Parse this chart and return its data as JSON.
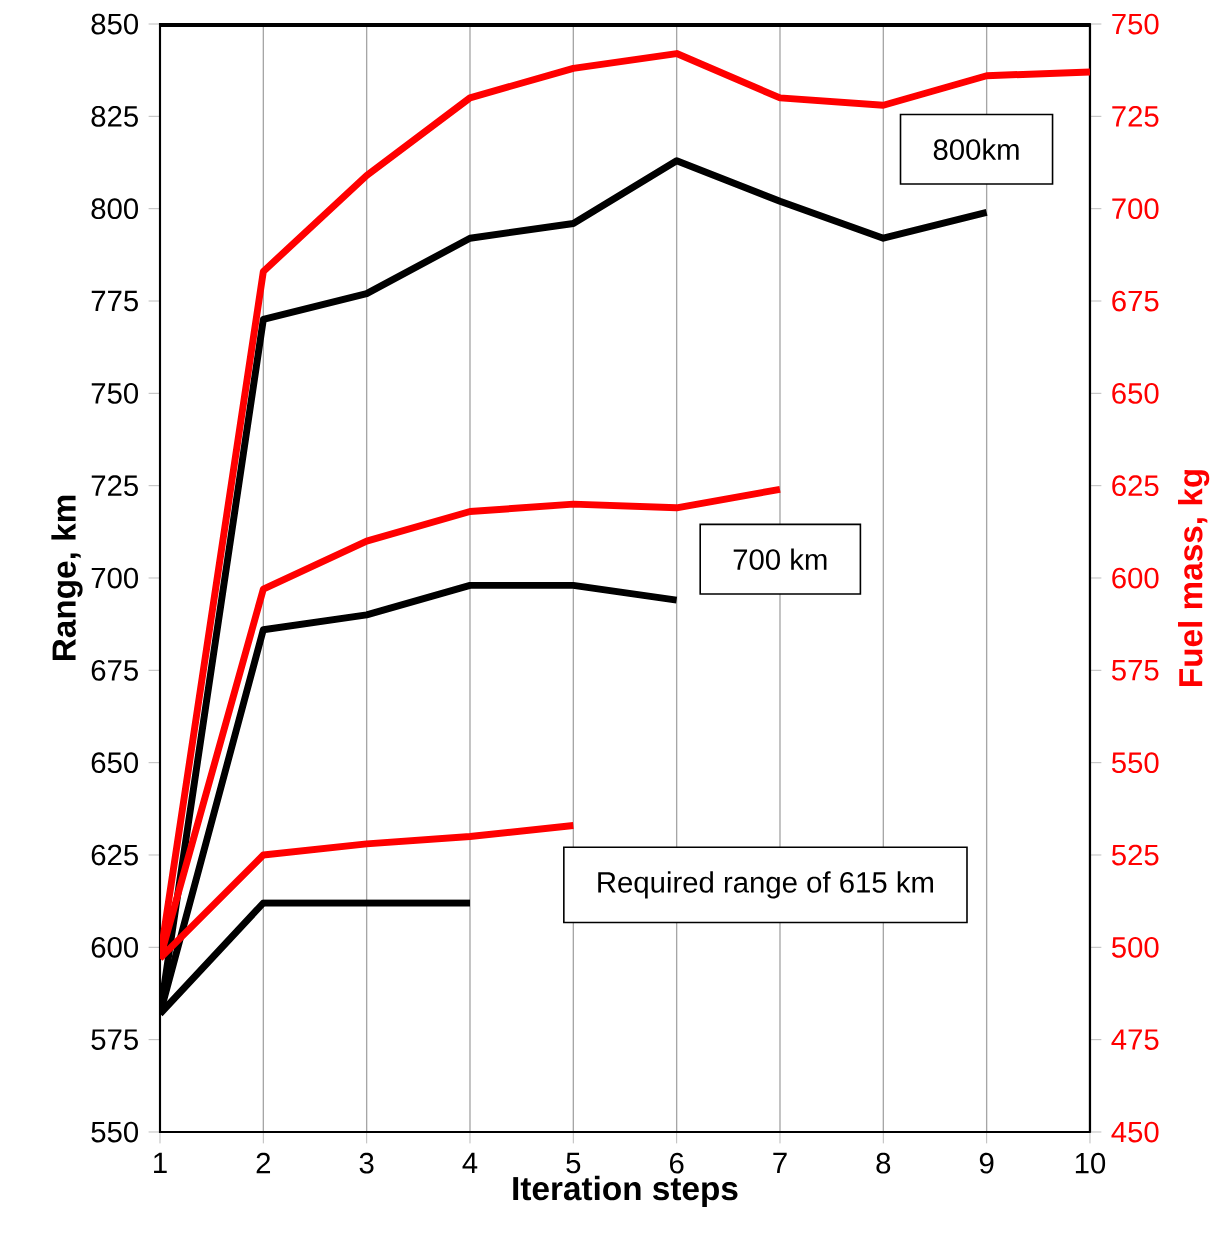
{
  "chart_data": {
    "type": "line",
    "xlabel": "Iteration steps",
    "ylabel": "Range, km",
    "y2label": "Fuel mass, kg",
    "xlim": [
      1,
      10
    ],
    "xticks": [
      1,
      2,
      3,
      4,
      5,
      6,
      7,
      8,
      9,
      10
    ],
    "ylim": [
      550,
      850
    ],
    "yticks": [
      550,
      575,
      600,
      625,
      650,
      675,
      700,
      725,
      750,
      775,
      800,
      825,
      850
    ],
    "y2lim": [
      450,
      750
    ],
    "y2ticks": [
      450,
      475,
      500,
      525,
      550,
      575,
      600,
      625,
      650,
      675,
      700,
      725,
      750
    ],
    "grid": "x",
    "marker": "none",
    "line_style": "solid",
    "series": [
      {
        "color": "#000000",
        "x": [
          1,
          2,
          3,
          4,
          5,
          6,
          7,
          8,
          9
        ],
        "values": [
          582,
          770,
          777,
          792,
          796,
          813,
          802,
          792,
          799
        ]
      },
      {
        "color": "#ff0000",
        "axis": "y2",
        "x": [
          1,
          2,
          3,
          4,
          5,
          6,
          7,
          8,
          9,
          10
        ],
        "values": [
          497,
          683,
          709,
          730,
          738,
          742,
          730,
          728,
          736,
          737
        ]
      },
      {
        "color": "#000000",
        "x": [
          1,
          2,
          3,
          4,
          5,
          6
        ],
        "values": [
          582,
          686,
          690,
          698,
          698,
          694
        ]
      },
      {
        "color": "#ff0000",
        "axis": "y2",
        "x": [
          1,
          2,
          3,
          4,
          5,
          6,
          7
        ],
        "values": [
          497,
          597,
          610,
          618,
          620,
          619,
          624
        ]
      },
      {
        "color": "#000000",
        "x": [
          1,
          2,
          3,
          4
        ],
        "values": [
          582,
          612,
          612,
          612
        ]
      },
      {
        "color": "#ff0000",
        "axis": "y2",
        "x": [
          1,
          2,
          3,
          4,
          5
        ],
        "values": [
          497,
          525,
          528,
          530,
          533
        ]
      }
    ],
    "annotations": [
      "800km",
      "700 km",
      "Required range of 615 km"
    ]
  }
}
